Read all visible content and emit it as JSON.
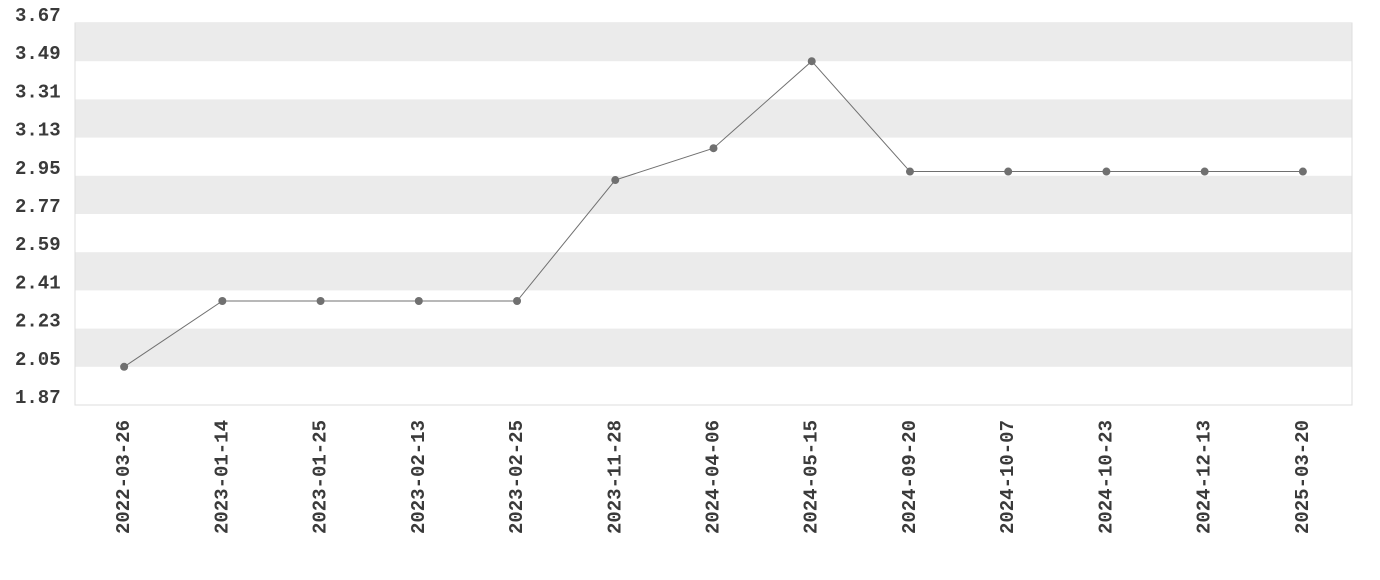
{
  "chart_data": {
    "type": "line",
    "categories": [
      "2022-03-26",
      "2023-01-14",
      "2023-01-25",
      "2023-02-13",
      "2023-02-25",
      "2023-11-28",
      "2024-04-06",
      "2024-05-15",
      "2024-09-20",
      "2024-10-07",
      "2024-10-23",
      "2024-12-13",
      "2025-03-20"
    ],
    "values": [
      2.05,
      2.36,
      2.36,
      2.36,
      2.36,
      2.93,
      3.08,
      3.49,
      2.97,
      2.97,
      2.97,
      2.97,
      2.97
    ],
    "color": "#707070",
    "ylim": [
      1.87,
      3.67
    ],
    "yticks": [
      1.87,
      2.05,
      2.23,
      2.41,
      2.59,
      2.77,
      2.95,
      3.13,
      3.31,
      3.49,
      3.67
    ],
    "grid": true
  }
}
